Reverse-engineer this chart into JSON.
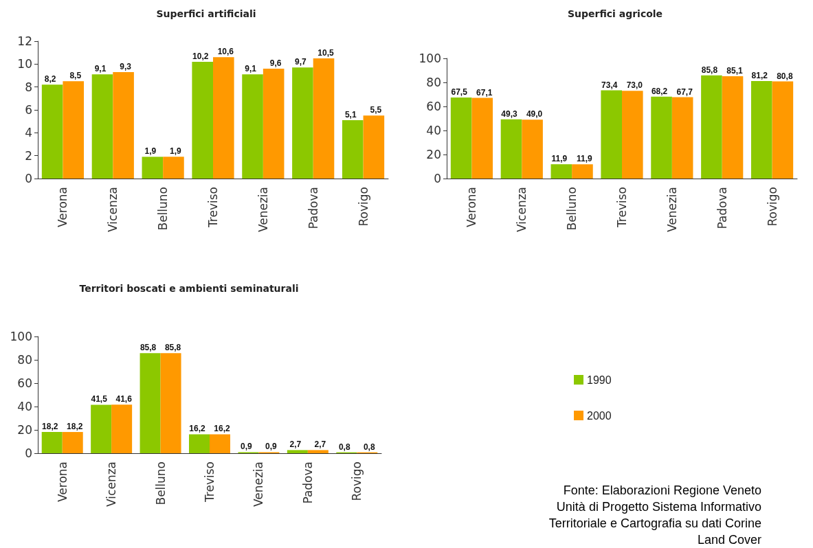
{
  "chart_data": [
    {
      "type": "bar",
      "title": "Superfici artificiali",
      "categories": [
        "Verona",
        "Vicenza",
        "Belluno",
        "Treviso",
        "Venezia",
        "Padova",
        "Rovigo"
      ],
      "series": [
        {
          "color": "#8cc800",
          "values": [
            8.2,
            9.1,
            1.9,
            10.2,
            9.1,
            9.7,
            5.1
          ],
          "value_labels": [
            "8,2",
            "9,1",
            "1,9",
            "10,2",
            "9,1",
            "9,7",
            "5,1"
          ]
        },
        {
          "color": "#ff9900",
          "values": [
            8.5,
            9.3,
            1.9,
            10.6,
            9.6,
            10.5,
            5.5
          ],
          "value_labels": [
            "8,5",
            "9,3",
            "1,9",
            "10,6",
            "9,6",
            "10,5",
            "5,5"
          ]
        }
      ],
      "ylim": [
        0,
        12
      ],
      "yticks": [
        0,
        2,
        4,
        6,
        8,
        10,
        12
      ],
      "grid": false,
      "legend": false
    },
    {
      "type": "bar",
      "title": "Superfici agricole",
      "categories": [
        "Verona",
        "Vicenza",
        "Belluno",
        "Treviso",
        "Venezia",
        "Padova",
        "Rovigo"
      ],
      "series": [
        {
          "color": "#8cc800",
          "values": [
            67.5,
            49.3,
            11.9,
            73.4,
            68.2,
            85.8,
            81.2
          ],
          "value_labels": [
            "67,5",
            "49,3",
            "11,9",
            "73,4",
            "68,2",
            "85,8",
            "81,2"
          ]
        },
        {
          "color": "#ff9900",
          "values": [
            67.1,
            49.0,
            11.9,
            73.0,
            67.7,
            85.1,
            80.8
          ],
          "value_labels": [
            "67,1",
            "49,0",
            "11,9",
            "73,0",
            "67,7",
            "85,1",
            "80,8"
          ]
        }
      ],
      "ylim": [
        0,
        100
      ],
      "yticks": [
        0,
        20,
        40,
        60,
        80,
        100
      ],
      "grid": false,
      "legend": false
    },
    {
      "type": "bar",
      "title": "Territori boscati e ambienti seminaturali",
      "categories": [
        "Verona",
        "Vicenza",
        "Belluno",
        "Treviso",
        "Venezia",
        "Padova",
        "Rovigo"
      ],
      "series": [
        {
          "name": "1990",
          "color": "#8cc800",
          "values": [
            18.2,
            41.5,
            85.8,
            16.2,
            0.9,
            2.7,
            0.8
          ],
          "value_labels": [
            "18,2",
            "41,5",
            "85,8",
            "16,2",
            "0,9",
            "2,7",
            "0,8"
          ]
        },
        {
          "name": "2000",
          "color": "#ff9900",
          "values": [
            18.2,
            41.6,
            85.8,
            16.2,
            0.9,
            2.7,
            0.8
          ],
          "value_labels": [
            "18,2",
            "41,6",
            "85,8",
            "16,2",
            "0,9",
            "2,7",
            "0,8"
          ]
        }
      ],
      "ylim": [
        0,
        100
      ],
      "yticks": [
        0,
        20,
        40,
        60,
        80,
        100
      ],
      "grid": false,
      "legend": "right",
      "annotations": [
        "Fonte: Elaborazioni Regione Veneto\nUnità di Progetto Sistema Informativo\nTerritoriale e Cartografia su dati Corine\nLand Cover"
      ]
    }
  ]
}
